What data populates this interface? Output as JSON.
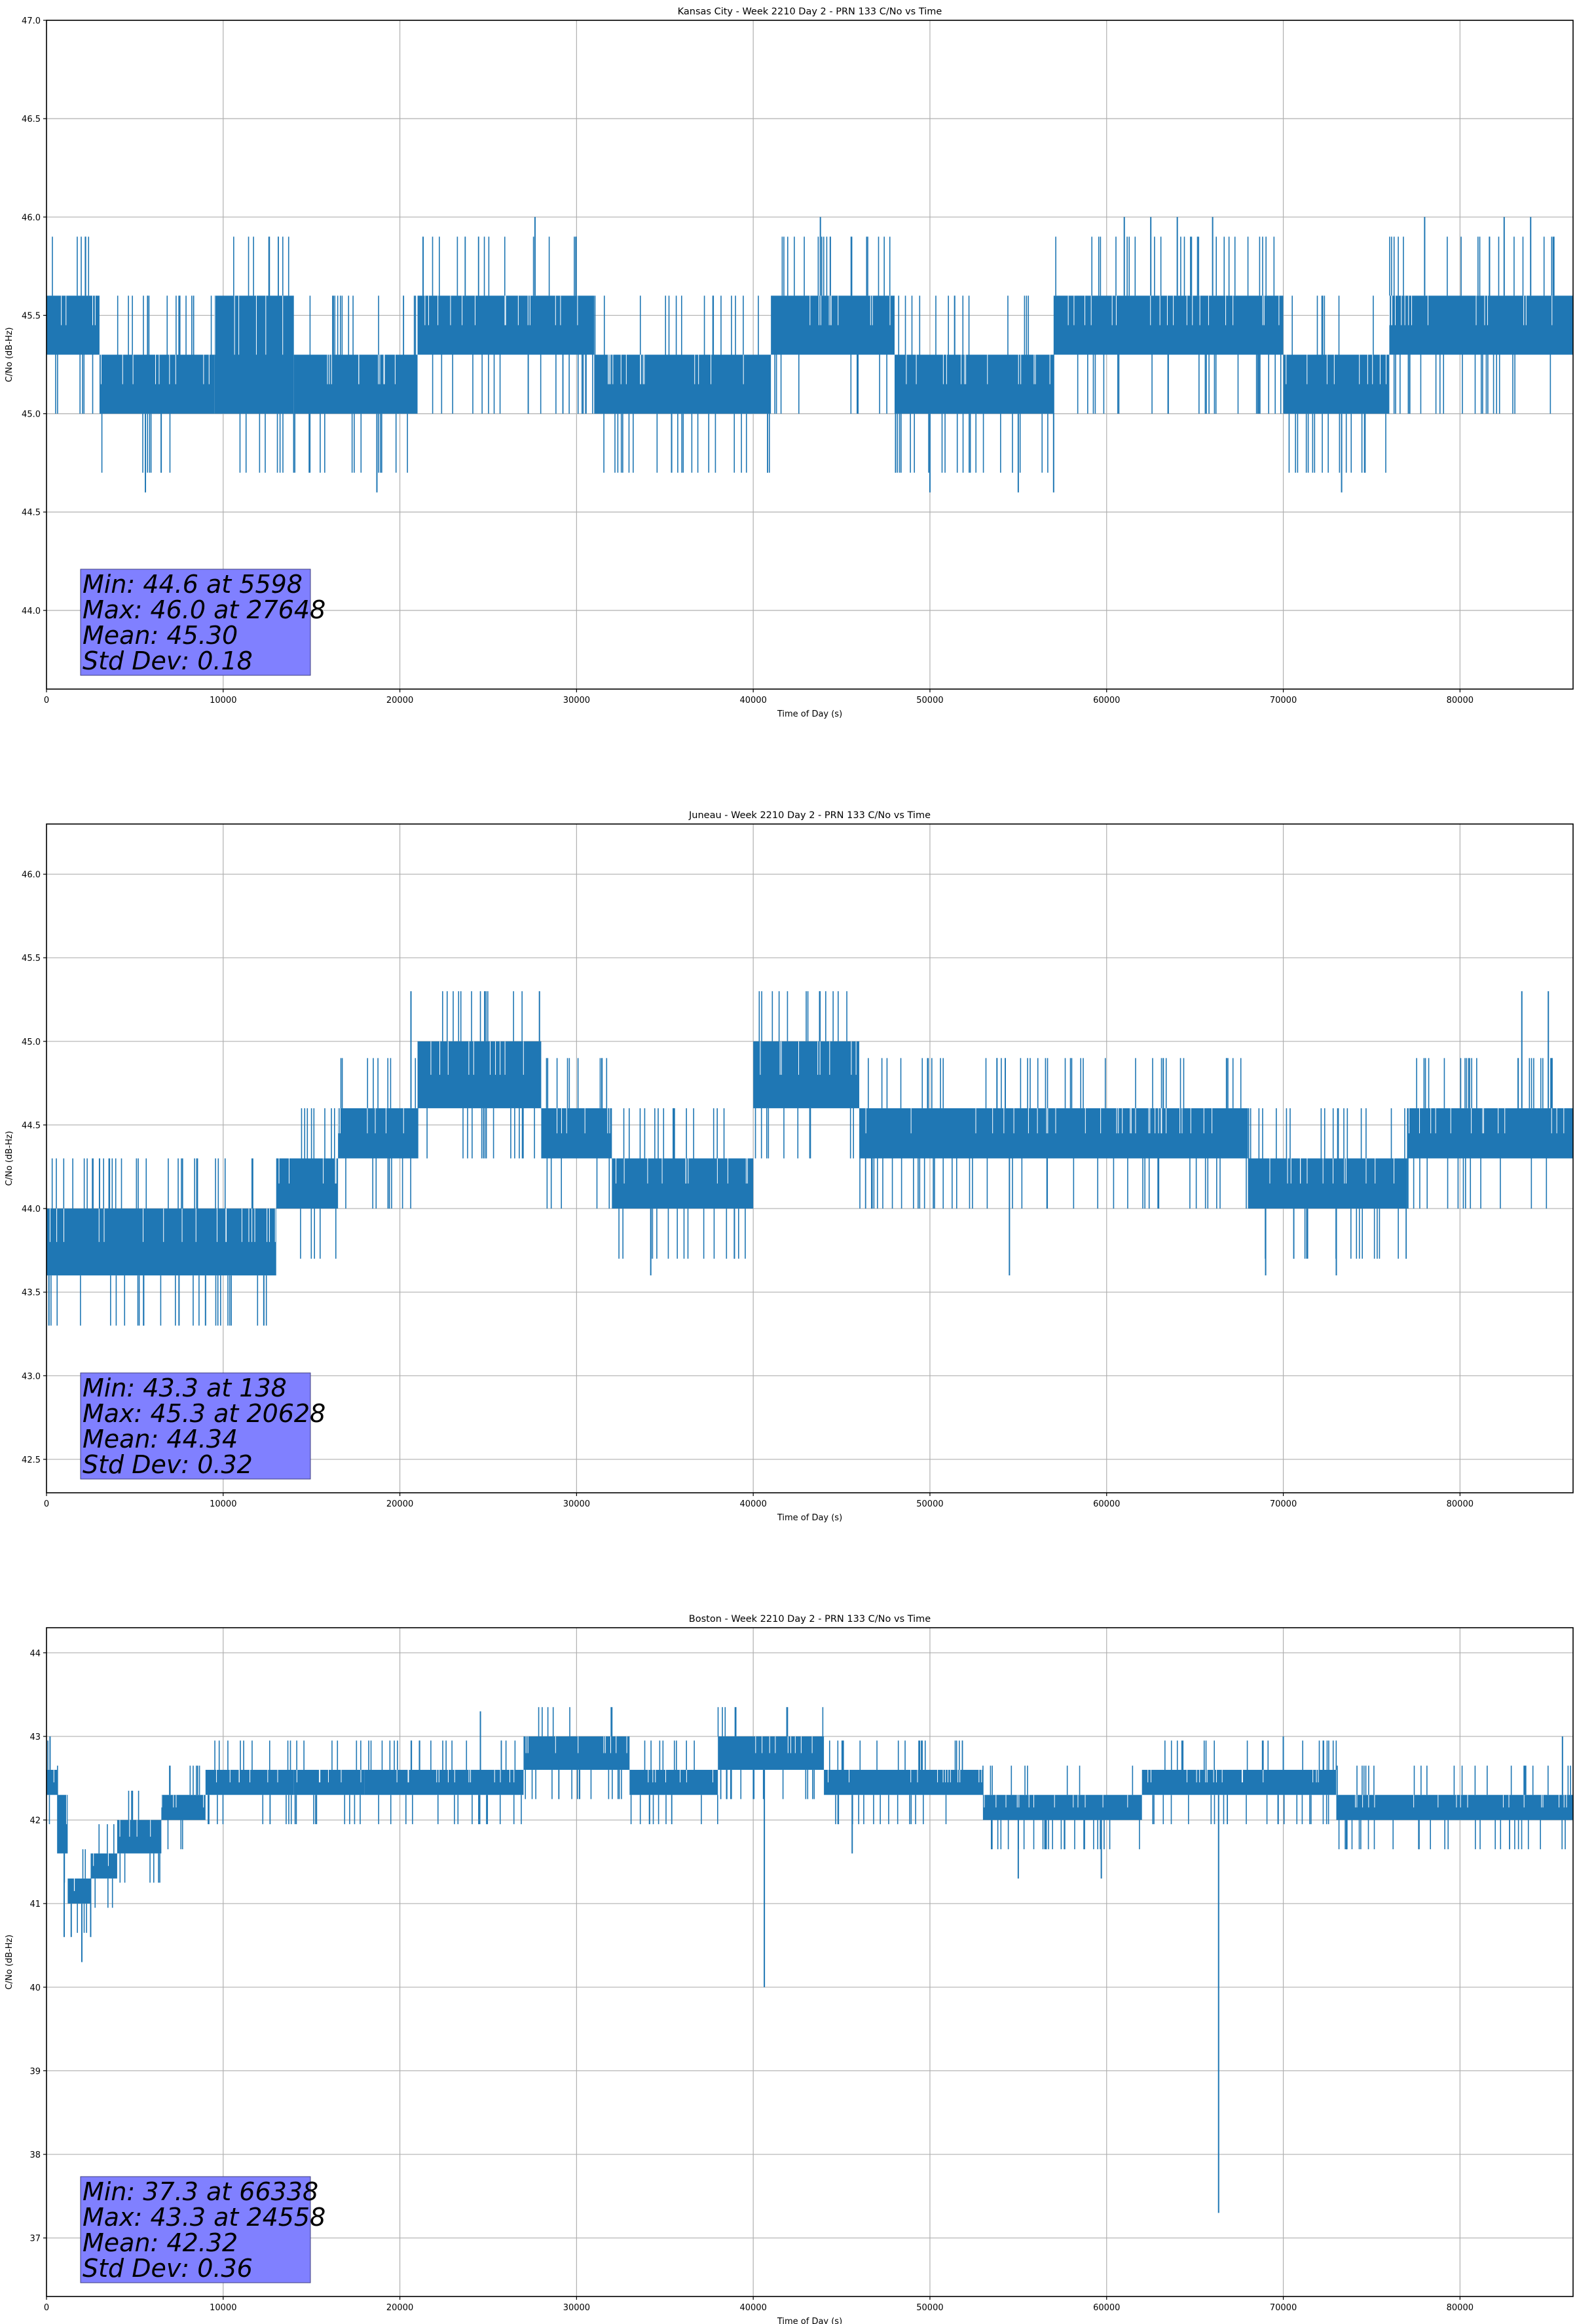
{
  "chart_data": [
    {
      "type": "line",
      "title": "Kansas City - Week 2210 Day 2 - PRN 133 C/No vs Time",
      "xlabel": "Time of Day (s)",
      "ylabel": "C/No (dB-Hz)",
      "xlim": [
        0,
        86400
      ],
      "ylim": [
        43.6,
        47.0
      ],
      "xticks": [
        0,
        10000,
        20000,
        30000,
        40000,
        50000,
        60000,
        70000,
        80000
      ],
      "yticks": [
        "44.0",
        "44.5",
        "45.0",
        "45.5",
        "46.0",
        "46.5",
        "47.0"
      ],
      "grid": true,
      "series_color": "#1f77b4",
      "segments": [
        [
          0,
          3000,
          45.3,
          45.6
        ],
        [
          3000,
          9500,
          45.0,
          45.3
        ],
        [
          9500,
          14000,
          45.0,
          45.6
        ],
        [
          14000,
          21000,
          45.0,
          45.3
        ],
        [
          21000,
          31000,
          45.3,
          45.6
        ],
        [
          31000,
          41000,
          45.0,
          45.3
        ],
        [
          41000,
          48000,
          45.3,
          45.6
        ],
        [
          48000,
          57000,
          45.0,
          45.3
        ],
        [
          57000,
          70000,
          45.3,
          45.6
        ],
        [
          70000,
          76000,
          45.0,
          45.3
        ],
        [
          76000,
          86400,
          45.3,
          45.6
        ]
      ],
      "spikes": [
        [
          5598,
          44.6
        ],
        [
          18700,
          44.6
        ],
        [
          27648,
          46.0
        ],
        [
          43800,
          46.0
        ],
        [
          50000,
          44.6
        ],
        [
          55000,
          44.6
        ],
        [
          57000,
          44.6
        ],
        [
          61000,
          46.0
        ],
        [
          62500,
          46.0
        ],
        [
          64000,
          46.0
        ],
        [
          66000,
          46.0
        ],
        [
          73300,
          44.6
        ],
        [
          78000,
          46.0
        ],
        [
          82500,
          46.0
        ],
        [
          84000,
          46.0
        ]
      ],
      "stats": {
        "min": "Min: 44.6 at 5598",
        "max": "Max: 46.0 at 27648",
        "mean": "Mean: 45.30",
        "std": "Std Dev: 0.18"
      },
      "stats_box_color": "#8080ff"
    },
    {
      "type": "line",
      "title": "Juneau - Week 2210 Day 2 - PRN 133 C/No vs Time",
      "xlabel": "Time of Day (s)",
      "ylabel": "C/No (dB-Hz)",
      "xlim": [
        0,
        86400
      ],
      "ylim": [
        42.3,
        46.3
      ],
      "xticks": [
        0,
        10000,
        20000,
        30000,
        40000,
        50000,
        60000,
        70000,
        80000
      ],
      "yticks": [
        "42.5",
        "43.0",
        "43.5",
        "44.0",
        "44.5",
        "45.0",
        "45.5",
        "46.0"
      ],
      "grid": true,
      "series_color": "#1f77b4",
      "segments": [
        [
          0,
          13000,
          43.6,
          44.0
        ],
        [
          13000,
          16500,
          44.0,
          44.3
        ],
        [
          16500,
          21000,
          44.3,
          44.6
        ],
        [
          21000,
          28000,
          44.6,
          45.0
        ],
        [
          28000,
          32000,
          44.3,
          44.6
        ],
        [
          32000,
          40000,
          44.0,
          44.3
        ],
        [
          40000,
          46000,
          44.6,
          45.0
        ],
        [
          46000,
          68000,
          44.3,
          44.6
        ],
        [
          68000,
          77000,
          44.0,
          44.3
        ],
        [
          77000,
          86400,
          44.3,
          44.6
        ]
      ],
      "spikes": [
        [
          138,
          43.3
        ],
        [
          3000,
          44.3
        ],
        [
          5500,
          43.3
        ],
        [
          7500,
          43.3
        ],
        [
          9000,
          43.3
        ],
        [
          12300,
          43.3
        ],
        [
          20628,
          45.3
        ],
        [
          24800,
          45.3
        ],
        [
          27900,
          45.3
        ],
        [
          34200,
          43.6
        ],
        [
          54500,
          43.6
        ],
        [
          69000,
          43.6
        ],
        [
          73000,
          43.6
        ],
        [
          83500,
          45.3
        ],
        [
          85000,
          45.3
        ]
      ],
      "stats": {
        "min": "Min: 43.3 at 138",
        "max": "Max: 45.3 at 20628",
        "mean": "Mean: 44.34",
        "std": "Std Dev: 0.32"
      },
      "stats_box_color": "#8080ff"
    },
    {
      "type": "line",
      "title": "Boston - Week 2210 Day 2 - PRN 133 C/No vs Time",
      "xlabel": "Time of Day (s)",
      "ylabel": "C/No (dB-Hz)",
      "xlim": [
        0,
        86400
      ],
      "ylim": [
        36.3,
        44.3
      ],
      "xticks": [
        0,
        10000,
        20000,
        30000,
        40000,
        50000,
        60000,
        70000,
        80000
      ],
      "yticks": [
        "37",
        "38",
        "39",
        "40",
        "41",
        "42",
        "43",
        "44"
      ],
      "grid": true,
      "series_color": "#1f77b4",
      "segments": [
        [
          0,
          600,
          42.3,
          42.6
        ],
        [
          600,
          1200,
          41.6,
          42.3
        ],
        [
          1200,
          2500,
          41.0,
          41.3
        ],
        [
          2500,
          4000,
          41.3,
          41.6
        ],
        [
          4000,
          6500,
          41.6,
          42.0
        ],
        [
          6500,
          9000,
          42.0,
          42.3
        ],
        [
          9000,
          14000,
          42.3,
          42.6
        ],
        [
          14000,
          18000,
          42.3,
          42.6
        ],
        [
          18000,
          27000,
          42.3,
          42.6
        ],
        [
          27000,
          33000,
          42.6,
          43.0
        ],
        [
          33000,
          38000,
          42.3,
          42.6
        ],
        [
          38000,
          44000,
          42.6,
          43.0
        ],
        [
          44000,
          53000,
          42.3,
          42.6
        ],
        [
          53000,
          62000,
          42.0,
          42.3
        ],
        [
          62000,
          73000,
          42.3,
          42.6
        ],
        [
          73000,
          86400,
          42.0,
          42.3
        ]
      ],
      "spikes": [
        [
          200,
          43.0
        ],
        [
          1000,
          40.6
        ],
        [
          1400,
          40.6
        ],
        [
          2000,
          40.3
        ],
        [
          2500,
          40.6
        ],
        [
          40628,
          40.0
        ],
        [
          24558,
          43.3
        ],
        [
          45600,
          41.6
        ],
        [
          55000,
          41.3
        ],
        [
          59700,
          41.3
        ],
        [
          66338,
          37.3
        ],
        [
          70000,
          43.0
        ],
        [
          85800,
          43.0
        ]
      ],
      "stats": {
        "min": "Min: 37.3 at 66338",
        "max": "Max: 43.3 at 24558",
        "mean": "Mean: 42.32",
        "std": "Std Dev: 0.36"
      },
      "stats_box_color": "#8080ff"
    }
  ]
}
